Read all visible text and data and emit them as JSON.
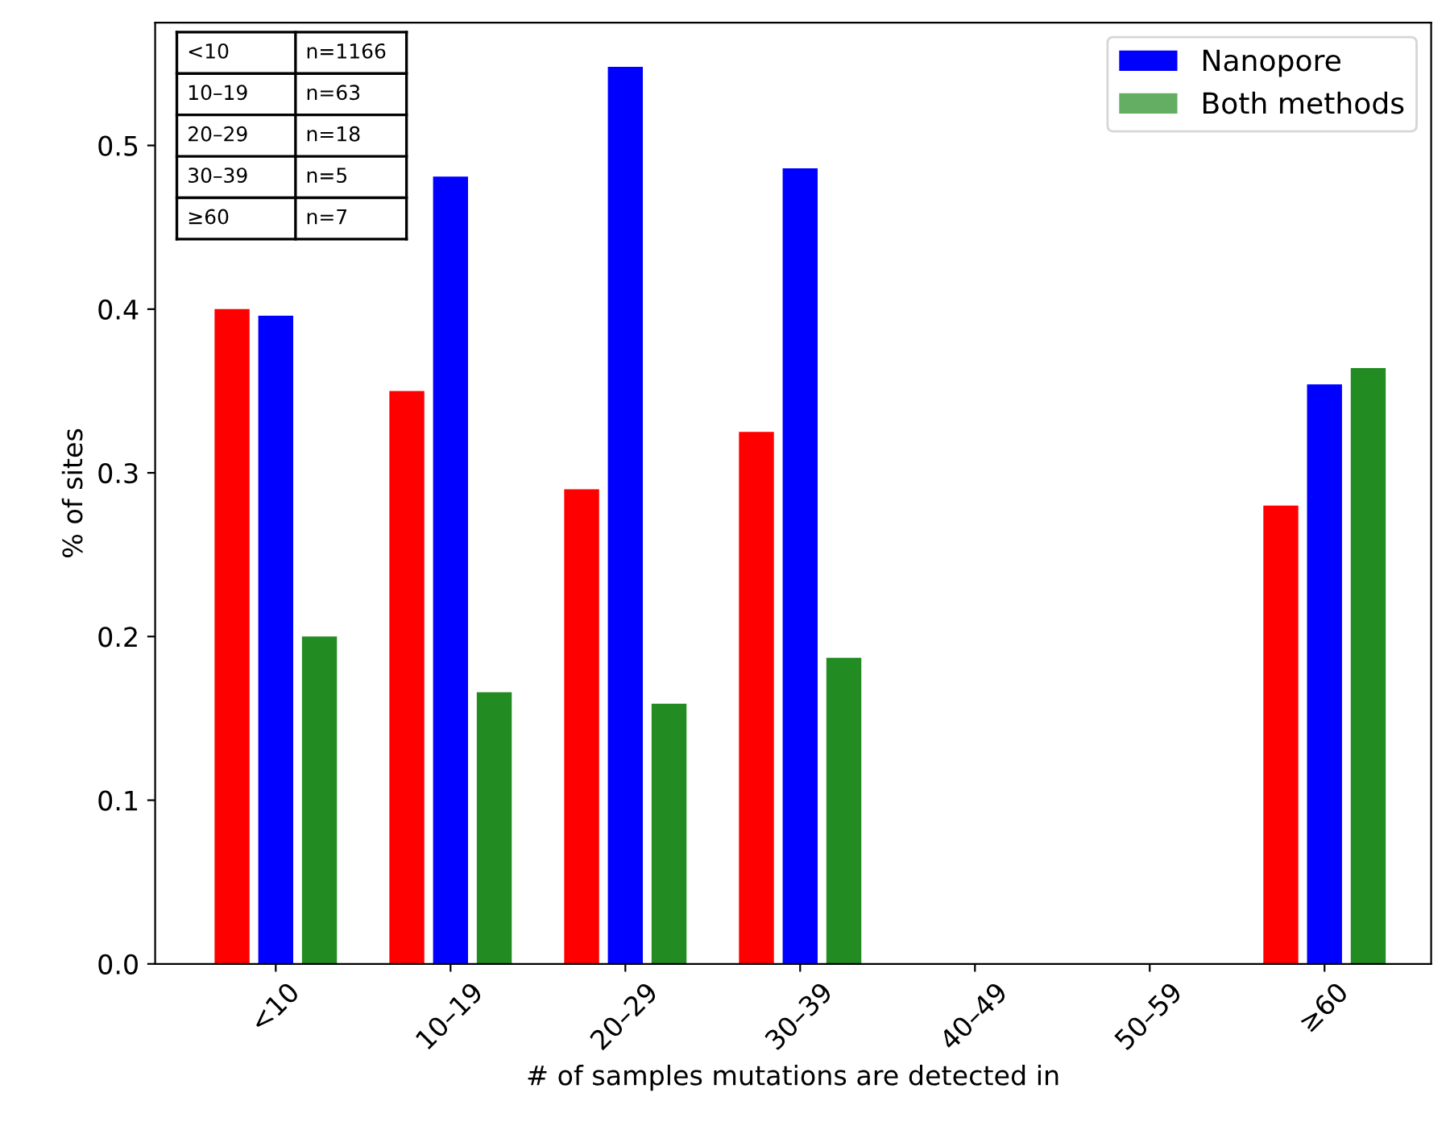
{
  "chart_data": {
    "type": "bar",
    "xlabel": "# of samples mutations are detected in",
    "ylabel": "% of sites",
    "categories": [
      "<10",
      "10–19",
      "20–29",
      "30–39",
      "40–49",
      "50–59",
      "≥60"
    ],
    "series": [
      {
        "color": "#ff0000",
        "values": [
          0.4,
          0.35,
          0.29,
          0.325,
          null,
          null,
          0.28
        ]
      },
      {
        "name": "Nanopore",
        "color": "#0000ff",
        "values": [
          0.396,
          0.481,
          0.548,
          0.486,
          null,
          null,
          0.354
        ]
      },
      {
        "name": "Both methods",
        "color": "#228b22",
        "values": [
          0.2,
          0.166,
          0.159,
          0.187,
          null,
          null,
          0.364
        ]
      }
    ],
    "ylim": [
      0,
      0.575
    ],
    "yticks": [
      {
        "value": 0,
        "label": "0.0"
      },
      0.1,
      0.2,
      0.3,
      0.4,
      0.5
    ],
    "grid": false,
    "legend": "top right",
    "annotations": [
      "<10",
      "n=1166",
      "10–19",
      "n=63",
      "20–29",
      "n=18",
      "30–39",
      "n=5",
      "≥60",
      "n=7"
    ]
  }
}
